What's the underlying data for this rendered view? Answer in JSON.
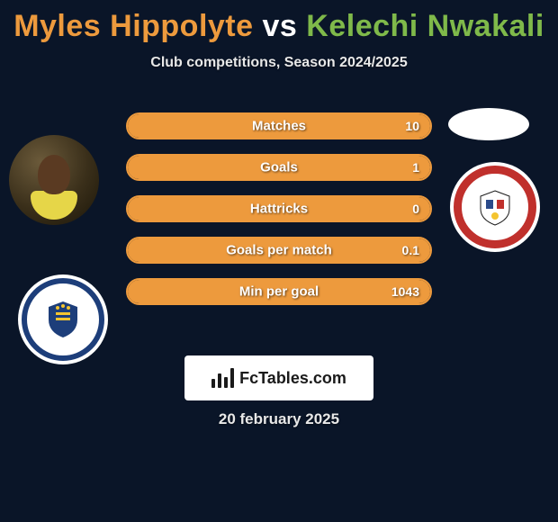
{
  "header": {
    "player1": "Myles Hippolyte",
    "vs": "vs",
    "player2": "Kelechi Nwakali",
    "player1_color": "#ed9a3d",
    "player2_color": "#7fb94a",
    "subtitle": "Club competitions, Season 2024/2025"
  },
  "stats": {
    "rows": [
      {
        "label": "Matches",
        "left": "",
        "right": "10",
        "fill_pct": 100
      },
      {
        "label": "Goals",
        "left": "",
        "right": "1",
        "fill_pct": 100
      },
      {
        "label": "Hattricks",
        "left": "",
        "right": "0",
        "fill_pct": 100
      },
      {
        "label": "Goals per match",
        "left": "",
        "right": "0.1",
        "fill_pct": 100
      },
      {
        "label": "Min per goal",
        "left": "",
        "right": "1043",
        "fill_pct": 100
      }
    ],
    "track_border_color": "#ed9a3d",
    "fill_color": "#ed9a3d"
  },
  "badge": {
    "text": "FcTables.com"
  },
  "date": "20 february 2025",
  "colors": {
    "background": "#0a1528",
    "white": "#ffffff"
  },
  "avatars": {
    "player_left_alt": "myles-hippolyte-photo",
    "player_right_alt": "kelechi-nwakali-photo",
    "club_left_alt": "stockport-county-crest",
    "club_right_alt": "barnsley-fc-crest"
  }
}
